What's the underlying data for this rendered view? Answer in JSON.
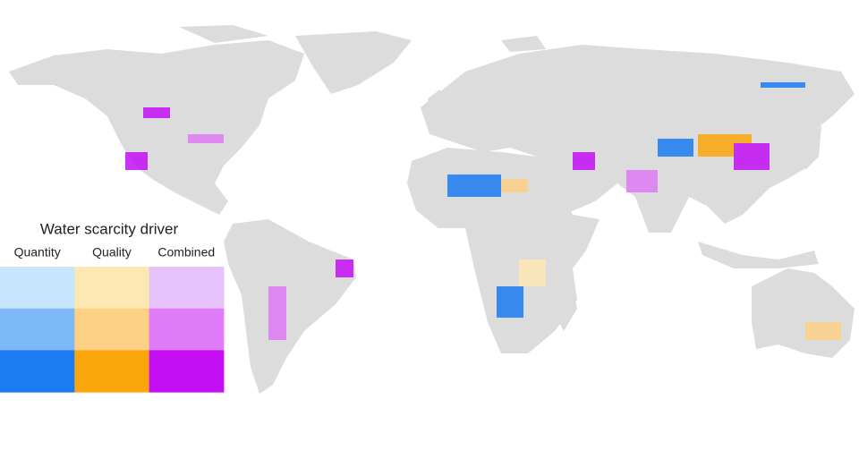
{
  "legend": {
    "title": "Water scarcity driver",
    "columns": [
      {
        "label": "Quantity",
        "colors": [
          "#c7e6fb",
          "#7db9f6",
          "#1b7bf1"
        ]
      },
      {
        "label": "Quality",
        "colors": [
          "#fde7b3",
          "#fcd085",
          "#fba60c"
        ]
      },
      {
        "label": "Combined",
        "colors": [
          "#e7c3fb",
          "#df7bf7",
          "#c40ff5"
        ]
      }
    ]
  }
}
